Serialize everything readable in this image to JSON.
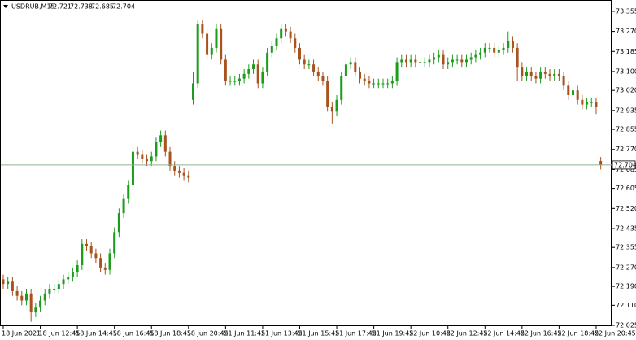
{
  "chart_data": {
    "type": "candlestick",
    "symbol": "USDRUB,M15",
    "up_color": "#1c9c1c",
    "down_color": "#a8521c",
    "price_line_color": "#8fb08f",
    "ylim": [
      72.025,
      73.403
    ],
    "yticks": [
      73.355,
      {
        "value": 73.27,
        "label": "73.270"
      },
      73.185,
      {
        "value": 73.1,
        "label": "73.100"
      },
      {
        "value": 73.02,
        "label": "73.020"
      },
      72.935,
      72.855,
      {
        "value": 72.77,
        "label": "72.770"
      },
      72.685,
      72.605,
      {
        "value": 72.52,
        "label": "72.520"
      },
      72.435,
      72.355,
      {
        "value": 72.27,
        "label": "72.270"
      },
      {
        "value": 72.19,
        "label": "72.190"
      },
      {
        "value": 72.11,
        "label": "72.110"
      },
      72.025
    ],
    "categories": [
      "18 Jun 2021",
      null,
      null,
      null,
      null,
      null,
      null,
      null,
      "18 Jun 12:45",
      null,
      null,
      null,
      null,
      null,
      null,
      null,
      "18 Jun 14:45",
      null,
      null,
      null,
      null,
      null,
      null,
      null,
      "18 Jun 16:45",
      null,
      null,
      null,
      null,
      null,
      null,
      null,
      "18 Jun 18:45",
      null,
      null,
      null,
      null,
      null,
      null,
      null,
      "18 Jun 20:45",
      null,
      null,
      null,
      null,
      null,
      null,
      null,
      "21 Jun 11:45",
      null,
      null,
      null,
      null,
      null,
      null,
      null,
      "21 Jun 13:45",
      null,
      null,
      null,
      null,
      null,
      null,
      null,
      "21 Jun 15:45",
      null,
      null,
      null,
      null,
      null,
      null,
      null,
      "21 Jun 17:45",
      null,
      null,
      null,
      null,
      null,
      null,
      null,
      "21 Jun 19:45",
      null,
      null,
      null,
      null,
      null,
      null,
      null,
      "22 Jun 10:45",
      null,
      null,
      null,
      null,
      null,
      null,
      null,
      "22 Jun 12:45",
      null,
      null,
      null,
      null,
      null,
      null,
      null,
      "22 Jun 14:45",
      null,
      null,
      null,
      null,
      null,
      null,
      null,
      "22 Jun 16:45",
      null,
      null,
      null,
      null,
      null,
      null,
      null,
      "22 Jun 18:45",
      null,
      null,
      null,
      null,
      null,
      null,
      null,
      "22 Jun 20:45",
      null
    ],
    "open": [
      72.22,
      72.2,
      72.21,
      72.17,
      72.15,
      72.13,
      72.16,
      72.08,
      72.1,
      72.13,
      72.16,
      72.18,
      72.18,
      72.2,
      72.22,
      72.23,
      72.25,
      72.28,
      72.37,
      72.36,
      72.33,
      72.31,
      72.27,
      72.26,
      72.33,
      72.42,
      72.5,
      72.56,
      72.62,
      72.76,
      72.75,
      72.73,
      72.72,
      72.74,
      72.8,
      72.83,
      72.76,
      72.7,
      72.68,
      72.67,
      72.66,
      72.98,
      73.05,
      73.3,
      73.26,
      73.17,
      73.2,
      73.28,
      73.15,
      73.06,
      73.06,
      73.06,
      73.07,
      73.09,
      73.11,
      73.13,
      73.05,
      73.1,
      73.18,
      73.21,
      73.24,
      73.28,
      73.27,
      73.24,
      73.2,
      73.15,
      73.13,
      73.13,
      73.1,
      73.08,
      73.06,
      72.95,
      72.93,
      72.98,
      73.08,
      73.13,
      73.14,
      73.1,
      73.07,
      73.06,
      73.05,
      73.05,
      73.05,
      73.05,
      73.05,
      73.06,
      73.14,
      73.15,
      73.14,
      73.15,
      73.14,
      73.14,
      73.14,
      73.15,
      73.16,
      73.17,
      73.13,
      73.14,
      73.15,
      73.15,
      73.14,
      73.15,
      73.16,
      73.17,
      73.18,
      73.2,
      73.2,
      73.18,
      73.19,
      73.2,
      73.23,
      73.2,
      73.12,
      73.08,
      73.1,
      73.08,
      73.07,
      73.1,
      73.09,
      73.08,
      73.09,
      73.08,
      73.04,
      73.0,
      73.02,
      72.98,
      72.96,
      72.97,
      72.97,
      72.721
    ],
    "high": [
      72.24,
      72.23,
      72.23,
      72.19,
      72.17,
      72.18,
      72.18,
      72.12,
      72.15,
      72.18,
      72.2,
      72.2,
      72.22,
      72.24,
      72.25,
      72.27,
      72.3,
      72.39,
      72.39,
      72.38,
      72.35,
      72.33,
      72.29,
      72.35,
      72.44,
      72.52,
      72.58,
      72.64,
      72.78,
      72.78,
      72.77,
      72.75,
      72.76,
      72.82,
      72.85,
      72.85,
      72.78,
      72.72,
      72.7,
      72.69,
      72.68,
      73.1,
      73.32,
      73.32,
      73.28,
      73.22,
      73.3,
      73.3,
      73.17,
      73.08,
      73.08,
      73.09,
      73.11,
      73.13,
      73.15,
      73.15,
      73.12,
      73.2,
      73.23,
      73.26,
      73.3,
      73.3,
      73.29,
      73.26,
      73.22,
      73.17,
      73.15,
      73.15,
      73.12,
      73.1,
      73.08,
      72.97,
      73.0,
      73.1,
      73.15,
      73.16,
      73.16,
      73.12,
      73.09,
      73.08,
      73.07,
      73.07,
      73.07,
      73.07,
      73.08,
      73.16,
      73.17,
      73.17,
      73.17,
      73.17,
      73.16,
      73.16,
      73.17,
      73.18,
      73.19,
      73.19,
      73.16,
      73.17,
      73.17,
      73.17,
      73.17,
      73.18,
      73.19,
      73.2,
      73.22,
      73.22,
      73.22,
      73.21,
      73.22,
      73.27,
      73.25,
      73.22,
      73.14,
      73.12,
      73.12,
      73.1,
      73.12,
      73.12,
      73.11,
      73.11,
      73.11,
      73.1,
      73.06,
      73.04,
      73.04,
      73.0,
      72.99,
      72.99,
      72.99,
      72.738
    ],
    "low": [
      72.18,
      72.18,
      72.15,
      72.13,
      72.11,
      72.11,
      72.04,
      72.06,
      72.08,
      72.11,
      72.14,
      72.16,
      72.16,
      72.18,
      72.2,
      72.21,
      72.23,
      72.26,
      72.34,
      72.31,
      72.29,
      72.25,
      72.24,
      72.24,
      72.31,
      72.4,
      72.48,
      72.54,
      72.6,
      72.73,
      72.71,
      72.7,
      72.7,
      72.72,
      72.78,
      72.74,
      72.68,
      72.66,
      72.65,
      72.64,
      72.63,
      72.96,
      73.03,
      73.24,
      73.15,
      73.15,
      73.18,
      73.13,
      73.04,
      73.04,
      73.04,
      73.04,
      73.05,
      73.07,
      73.09,
      73.03,
      73.03,
      73.08,
      73.16,
      73.19,
      73.22,
      73.25,
      73.22,
      73.18,
      73.13,
      73.11,
      73.11,
      73.08,
      73.06,
      73.04,
      72.93,
      72.88,
      72.91,
      72.96,
      73.06,
      73.11,
      73.08,
      73.05,
      73.04,
      73.03,
      73.03,
      73.03,
      73.03,
      73.03,
      73.03,
      73.04,
      73.12,
      73.12,
      73.12,
      73.12,
      73.12,
      73.12,
      73.12,
      73.13,
      73.14,
      73.11,
      73.11,
      73.12,
      73.13,
      73.12,
      73.12,
      73.13,
      73.14,
      73.15,
      73.16,
      73.18,
      73.16,
      73.16,
      73.17,
      73.18,
      73.18,
      73.06,
      73.06,
      73.06,
      73.06,
      73.05,
      73.05,
      73.07,
      73.06,
      73.06,
      73.06,
      73.02,
      72.98,
      72.98,
      72.96,
      72.94,
      72.94,
      72.95,
      72.92,
      72.685
    ],
    "close": [
      72.2,
      72.21,
      72.17,
      72.15,
      72.13,
      72.16,
      72.08,
      72.1,
      72.13,
      72.16,
      72.18,
      72.18,
      72.2,
      72.22,
      72.23,
      72.25,
      72.28,
      72.37,
      72.36,
      72.33,
      72.31,
      72.27,
      72.26,
      72.33,
      72.42,
      72.5,
      72.56,
      72.62,
      72.76,
      72.75,
      72.73,
      72.72,
      72.74,
      72.8,
      72.83,
      72.76,
      72.7,
      72.68,
      72.67,
      72.66,
      72.65,
      73.05,
      73.3,
      73.26,
      73.17,
      73.2,
      73.28,
      73.15,
      73.06,
      73.06,
      73.06,
      73.07,
      73.09,
      73.11,
      73.13,
      73.05,
      73.1,
      73.18,
      73.21,
      73.24,
      73.28,
      73.27,
      73.24,
      73.2,
      73.15,
      73.13,
      73.13,
      73.1,
      73.08,
      73.06,
      72.95,
      72.93,
      72.98,
      73.08,
      73.13,
      73.14,
      73.1,
      73.07,
      73.06,
      73.05,
      73.05,
      73.05,
      73.05,
      73.05,
      73.06,
      73.14,
      73.15,
      73.14,
      73.15,
      73.14,
      73.14,
      73.14,
      73.15,
      73.16,
      73.17,
      73.13,
      73.14,
      73.15,
      73.15,
      73.14,
      73.15,
      73.16,
      73.17,
      73.18,
      73.2,
      73.2,
      73.18,
      73.19,
      73.2,
      73.23,
      73.2,
      73.12,
      73.08,
      73.1,
      73.08,
      73.07,
      73.1,
      73.09,
      73.08,
      73.09,
      73.08,
      73.04,
      73.0,
      73.02,
      72.98,
      72.96,
      72.97,
      72.97,
      72.95,
      72.704
    ]
  }
}
